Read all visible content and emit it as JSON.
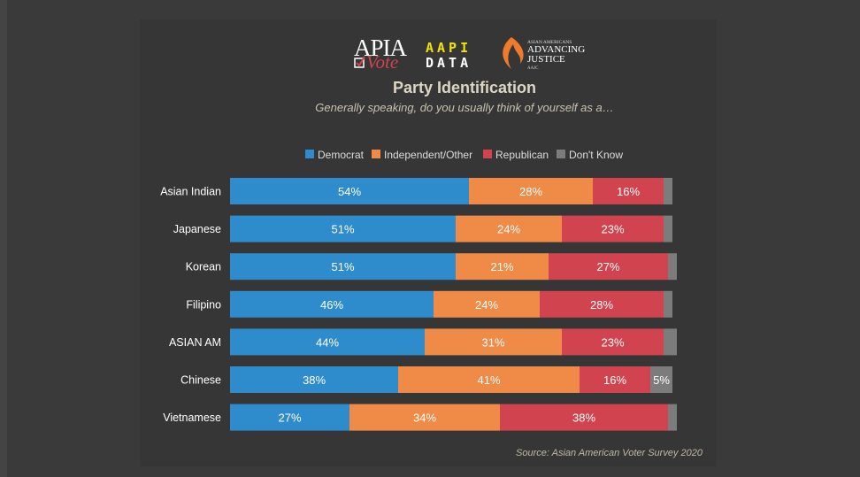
{
  "logos": {
    "apia_top": "APIA",
    "apia_bottom": "Vote",
    "aapi_top": "AAPI",
    "aapi_bottom": "DATA",
    "aajc_small": "ASIAN AMERICANS",
    "aajc_line1": "ADVANCING",
    "aajc_line2": "JUSTICE",
    "aajc_tag": "AAJC"
  },
  "chart_data": {
    "type": "bar",
    "orientation": "horizontal-stacked",
    "title": "Party Identification",
    "subtitle": "Generally speaking, do you usually think of yourself as a…",
    "source": "Source: Asian American Voter Survey 2020",
    "legend_position": "top",
    "categories": [
      "Asian Indian",
      "Japanese",
      "Korean",
      "Filipino",
      "ASIAN AM",
      "Chinese",
      "Vietnamese"
    ],
    "series": [
      {
        "name": "Democrat",
        "color": "#2e8bcc",
        "values": [
          54,
          51,
          51,
          46,
          44,
          38,
          27
        ],
        "labels": [
          "54%",
          "51%",
          "51%",
          "46%",
          "44%",
          "38%",
          "27%"
        ]
      },
      {
        "name": "Independent/Other",
        "color": "#ef8a47",
        "values": [
          28,
          24,
          21,
          24,
          31,
          41,
          34
        ],
        "labels": [
          "28%",
          "24%",
          "21%",
          "24%",
          "31%",
          "41%",
          "34%"
        ]
      },
      {
        "name": "Republican",
        "color": "#d0434f",
        "values": [
          16,
          23,
          27,
          28,
          23,
          16,
          38
        ],
        "labels": [
          "16%",
          "23%",
          "27%",
          "28%",
          "23%",
          "16%",
          "38%"
        ]
      },
      {
        "name": "Don't Know",
        "color": "#7c7c7c",
        "values": [
          2,
          2,
          2,
          2,
          3,
          5,
          2
        ],
        "labels": [
          "",
          "",
          "",
          "",
          "",
          "5%",
          ""
        ]
      }
    ],
    "xlim": [
      0,
      101
    ]
  }
}
